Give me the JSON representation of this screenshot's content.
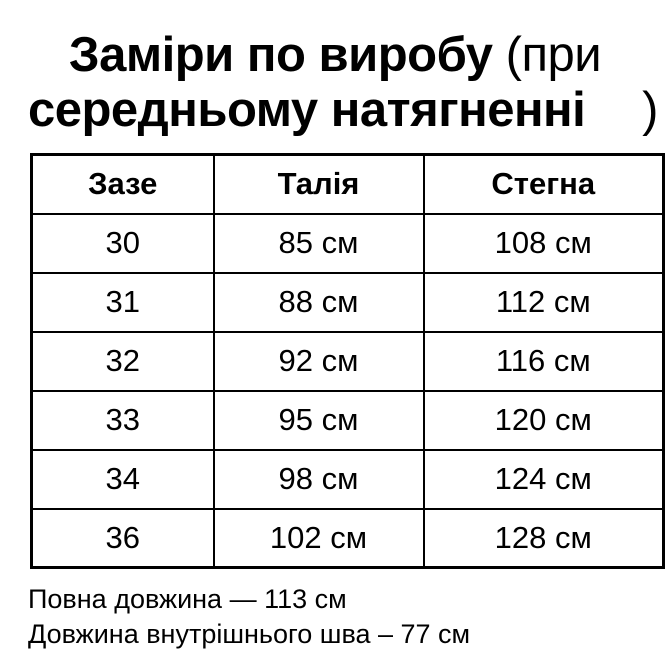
{
  "title": {
    "bold1": "Заміри по виробу",
    "light1": "(при",
    "bold2": "середньому натягненні",
    "paren": ")"
  },
  "table": {
    "headers": [
      "Зазе",
      "Талія",
      "Стегна"
    ],
    "rows": [
      [
        "30",
        "85 см",
        "108 см"
      ],
      [
        "31",
        "88 см",
        "112 см"
      ],
      [
        "32",
        "92 см",
        "116 см"
      ],
      [
        "33",
        "95 см",
        "120 см"
      ],
      [
        "34",
        "98 см",
        "124 см"
      ],
      [
        "36",
        "102 см",
        "128 см"
      ]
    ]
  },
  "footer": {
    "line1": "Повна довжина — 113 см",
    "line2": "Довжина внутрішнього шва – 77 см"
  },
  "colors": {
    "background": "#ffffff",
    "text": "#000000",
    "border": "#000000"
  }
}
